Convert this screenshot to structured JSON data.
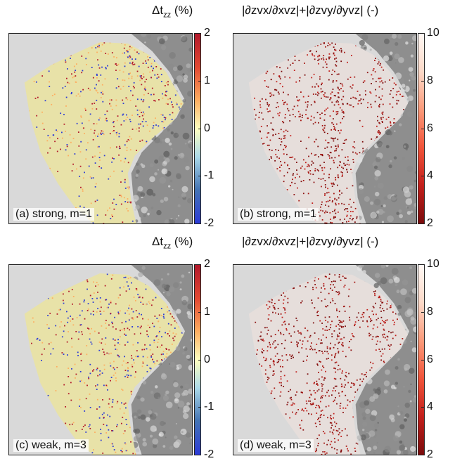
{
  "panels": [
    {
      "label": "(a) strong, m=1",
      "kind": "diverging"
    },
    {
      "label": "(b) strong, m=1",
      "kind": "sequential"
    },
    {
      "label": "(c) weak, m=3",
      "kind": "diverging"
    },
    {
      "label": "(d) weak, m=3",
      "kind": "sequential"
    }
  ],
  "colorbars": {
    "diverging": {
      "title_main": "Δt",
      "title_sub": "zz",
      "title_unit": "(%)",
      "ticks": [
        "2",
        "1",
        "0",
        "-1",
        "-2"
      ],
      "range": [
        -2,
        2
      ],
      "colors": [
        "#b2182b",
        "#ffffbf",
        "#2c3bd6"
      ]
    },
    "sequential": {
      "title": "|∂zvx/∂xvz|+|∂zvy/∂yvz| (-)",
      "ticks": [
        "10",
        "8",
        "6",
        "4",
        "2"
      ],
      "range": [
        2,
        10
      ],
      "colors": [
        "#fff8f4",
        "#c21f1b",
        "#7a0b0b"
      ]
    }
  },
  "chart_data": [
    {
      "type": "heatmap",
      "title": "(a) strong, m=1",
      "colorbar_label": "Δtzz (%)",
      "clim": [
        -2,
        2
      ],
      "colorbar_ticks": [
        -2,
        -1,
        0,
        1,
        2
      ]
    },
    {
      "type": "heatmap",
      "title": "(b) strong, m=1",
      "colorbar_label": "|∂zvx/∂xvz|+|∂zvy/∂yvz| (-)",
      "clim": [
        2,
        10
      ],
      "colorbar_ticks": [
        2,
        4,
        6,
        8,
        10
      ]
    },
    {
      "type": "heatmap",
      "title": "(c) weak, m=3",
      "colorbar_label": "Δtzz (%)",
      "clim": [
        -2,
        2
      ],
      "colorbar_ticks": [
        -2,
        -1,
        0,
        1,
        2
      ]
    },
    {
      "type": "heatmap",
      "title": "(d) weak, m=3",
      "colorbar_label": "|∂zvx/∂xvz|+|∂zvy/∂yvz| (-)",
      "clim": [
        2,
        10
      ],
      "colorbar_ticks": [
        2,
        4,
        6,
        8,
        10
      ]
    }
  ]
}
